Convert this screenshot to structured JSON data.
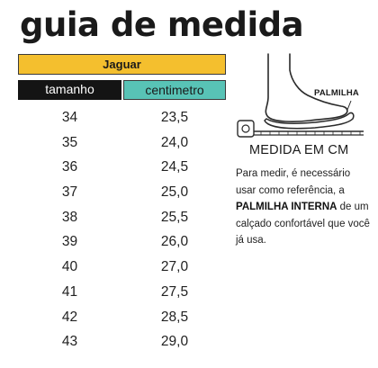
{
  "title": "guia de medida",
  "brand": "Jaguar",
  "headers": {
    "size": "tamanho",
    "cm": "centimetro"
  },
  "rows": [
    {
      "size": "34",
      "cm": "23,5"
    },
    {
      "size": "35",
      "cm": "24,0"
    },
    {
      "size": "36",
      "cm": "24,5"
    },
    {
      "size": "37",
      "cm": "25,0"
    },
    {
      "size": "38",
      "cm": "25,5"
    },
    {
      "size": "39",
      "cm": "26,0"
    },
    {
      "size": "40",
      "cm": "27,0"
    },
    {
      "size": "41",
      "cm": "27,5"
    },
    {
      "size": "42",
      "cm": "28,5"
    },
    {
      "size": "43",
      "cm": "29,0"
    }
  ],
  "illustration": {
    "palmilha_label": "PALMILHA",
    "measure_title": "MEDIDA EM CM"
  },
  "description": {
    "part1": "Para medir, é necessário usar como referência, a ",
    "bold": "PALMILHA INTERNA",
    "part2": " de um calçado confortável que você já usa."
  },
  "colors": {
    "brand_bar": "#f4bf2e",
    "size_header": "#141414",
    "cm_header": "#58c3b6"
  }
}
